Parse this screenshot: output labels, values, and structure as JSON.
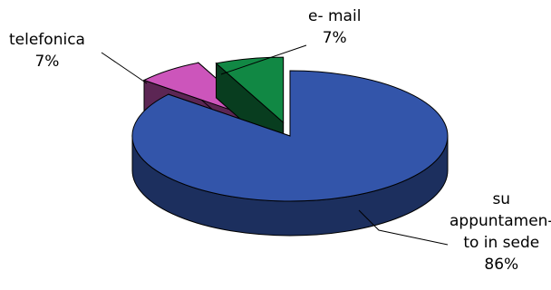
{
  "chart_data": {
    "type": "pie",
    "variant": "3d-exploded",
    "title": "",
    "slices": [
      {
        "label_lines": [
          "su",
          "appuntamen-",
          "to in sede"
        ],
        "value": 86,
        "value_label": "86%",
        "color": "#3355aa"
      },
      {
        "label_lines": [
          "telefonica"
        ],
        "value": 7,
        "value_label": "7%",
        "color": "#cc55bb"
      },
      {
        "label_lines": [
          "e- mail"
        ],
        "value": 7,
        "value_label": "7%",
        "color": "#118844"
      }
    ],
    "legend": "none"
  }
}
